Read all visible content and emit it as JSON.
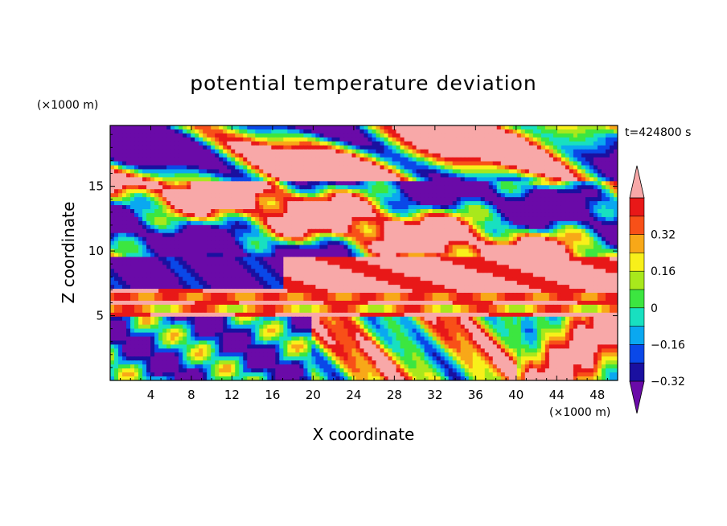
{
  "chart_data": {
    "type": "heatmap",
    "title": "potential temperature deviation",
    "xlabel": "X coordinate",
    "ylabel": "Z coordinate",
    "x_unit": "(×1000 m)",
    "y_unit": "(×1000 m)",
    "time_label": "t=424800 s",
    "xlim": [
      0,
      50
    ],
    "ylim": [
      0,
      19.7
    ],
    "x_ticks": [
      4,
      8,
      12,
      16,
      20,
      24,
      28,
      32,
      36,
      40,
      44,
      48
    ],
    "y_ticks": [
      5,
      10,
      15
    ],
    "colorbar": {
      "tick_labels": [
        "0.32",
        "0.16",
        "0",
        "-0.16",
        "-0.32"
      ],
      "tick_values": [
        0.32,
        0.16,
        0,
        -0.16,
        -0.32
      ],
      "levels": [
        -0.4,
        -0.32,
        -0.24,
        -0.16,
        -0.08,
        0,
        0.08,
        0.16,
        0.24,
        0.32,
        0.4
      ],
      "colors": [
        "#6a0aa8",
        "#1a10a0",
        "#0a48e8",
        "#0aa8f0",
        "#18e0c0",
        "#3ce640",
        "#a8e81c",
        "#f8f01a",
        "#f8a818",
        "#f85018",
        "#e81818",
        "#f8a8a8"
      ],
      "extend": "both"
    },
    "regions": [
      {
        "zmin": 15.5,
        "zmax": 19.7,
        "pattern": "upper mixed layer: large pink (>0.4) and purple (<-0.4) patches with thin colored fringes"
      },
      {
        "zmin": 9.5,
        "zmax": 15.5,
        "pattern": "broad purple and pink bands alternating, with blue/green/red filaments"
      },
      {
        "zmin": 5.0,
        "zmax": 9.5,
        "pattern": "pink layer above 6-7 km with thin orange/yellow/red stripe near z≈6.5"
      },
      {
        "zmin": 0.0,
        "zmax": 5.0,
        "pattern": "boundary layer: blue/cyan/purple on left (x<20), green-yellow-orange-red convective plumes x=24-50, pink at x=40-50"
      }
    ]
  }
}
